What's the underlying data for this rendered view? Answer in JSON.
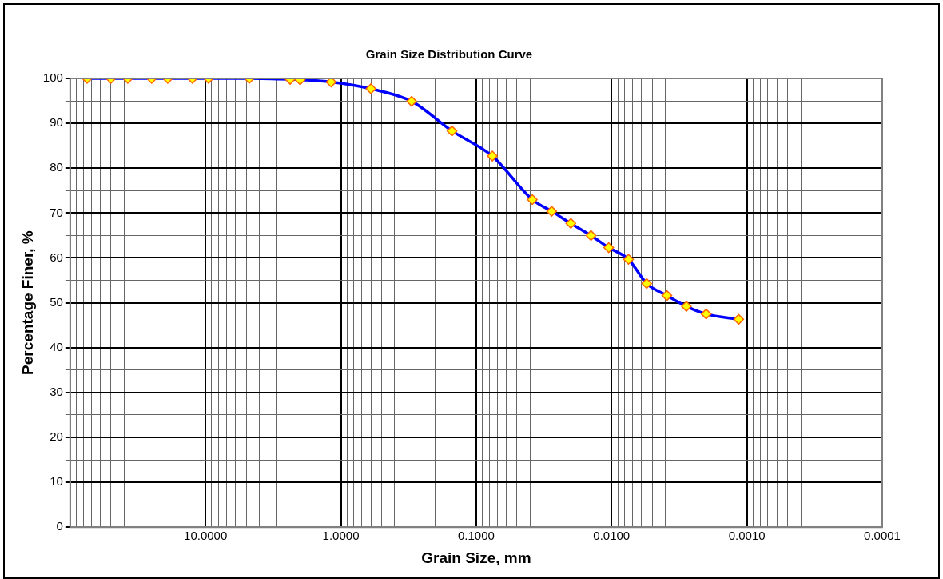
{
  "chart_data": {
    "type": "line",
    "title": "Grain Size Distribution Curve",
    "xlabel": "Grain Size, mm",
    "ylabel": "Percentage Finer, %",
    "x": [
      75,
      50,
      37.5,
      25,
      19,
      12.5,
      9.5,
      4.75,
      2.37,
      2,
      1.18,
      0.6,
      0.3,
      0.151,
      0.076,
      0.0385,
      0.0277,
      0.02,
      0.0142,
      0.0105,
      0.0075,
      0.0055,
      0.0039,
      0.0028,
      0.002,
      0.00115
    ],
    "series": [
      {
        "color": "#0000ff",
        "values": [
          100,
          100,
          100,
          100,
          100,
          100,
          100,
          100,
          99.8,
          99.7,
          99.2,
          97.7,
          94.9,
          88.3,
          82.7,
          73.0,
          70.4,
          67.7,
          65.0,
          62.3,
          59.7,
          54.3,
          51.6,
          49.2,
          47.5,
          46.3
        ]
      }
    ],
    "log": "x",
    "xlim": [
      100,
      0.0001
    ],
    "ylim": [
      0,
      100
    ],
    "xticks": [
      {
        "value": 100,
        "label": null
      },
      {
        "value": 90,
        "label": null
      },
      {
        "value": 80,
        "label": null
      },
      {
        "value": 70,
        "label": null
      },
      {
        "value": 60,
        "label": null
      },
      {
        "value": 50,
        "label": null
      },
      {
        "value": 40,
        "label": null
      },
      {
        "value": 30,
        "label": null
      },
      {
        "value": 20,
        "label": null
      },
      {
        "value": 10,
        "label": "10.0000"
      },
      {
        "value": 9,
        "label": null
      },
      {
        "value": 8,
        "label": null
      },
      {
        "value": 7,
        "label": null
      },
      {
        "value": 6,
        "label": null
      },
      {
        "value": 5,
        "label": null
      },
      {
        "value": 4,
        "label": null
      },
      {
        "value": 3,
        "label": null
      },
      {
        "value": 2,
        "label": null
      },
      {
        "value": 1,
        "label": "1.0000"
      },
      {
        "value": 0.9,
        "label": null
      },
      {
        "value": 0.8,
        "label": null
      },
      {
        "value": 0.7,
        "label": null
      },
      {
        "value": 0.6,
        "label": null
      },
      {
        "value": 0.5,
        "label": null
      },
      {
        "value": 0.4,
        "label": null
      },
      {
        "value": 0.3,
        "label": null
      },
      {
        "value": 0.2,
        "label": null
      },
      {
        "value": 0.1,
        "label": "0.1000"
      },
      {
        "value": 0.09,
        "label": null
      },
      {
        "value": 0.08,
        "label": null
      },
      {
        "value": 0.07,
        "label": null
      },
      {
        "value": 0.06,
        "label": null
      },
      {
        "value": 0.05,
        "label": null
      },
      {
        "value": 0.04,
        "label": null
      },
      {
        "value": 0.03,
        "label": null
      },
      {
        "value": 0.02,
        "label": null
      },
      {
        "value": 0.01,
        "label": "0.0100"
      },
      {
        "value": 0.009,
        "label": null
      },
      {
        "value": 0.008,
        "label": null
      },
      {
        "value": 0.007,
        "label": null
      },
      {
        "value": 0.006,
        "label": null
      },
      {
        "value": 0.005,
        "label": null
      },
      {
        "value": 0.004,
        "label": null
      },
      {
        "value": 0.003,
        "label": null
      },
      {
        "value": 0.002,
        "label": null
      },
      {
        "value": 0.001,
        "label": "0.0010"
      },
      {
        "value": 0.0009,
        "label": null
      },
      {
        "value": 0.0008,
        "label": null
      },
      {
        "value": 0.0007,
        "label": null
      },
      {
        "value": 0.0006,
        "label": null
      },
      {
        "value": 0.0005,
        "label": null
      },
      {
        "value": 0.0004,
        "label": null
      },
      {
        "value": 0.0003,
        "label": null
      },
      {
        "value": 0.0002,
        "label": null
      },
      {
        "value": 0.0001,
        "label": "0.0001"
      }
    ],
    "yticks": [
      0,
      {
        "value": 5,
        "label": null
      },
      10,
      {
        "value": 15,
        "label": null
      },
      20,
      {
        "value": 25,
        "label": null
      },
      30,
      {
        "value": 35,
        "label": null
      },
      40,
      {
        "value": 45,
        "label": null
      },
      50,
      {
        "value": 55,
        "label": null
      },
      60,
      {
        "value": 65,
        "label": null
      },
      70,
      {
        "value": 75,
        "label": null
      },
      80,
      {
        "value": 85,
        "label": null
      },
      90,
      {
        "value": 95,
        "label": null
      },
      100
    ],
    "grid": true,
    "legend": false,
    "marker": "diamond",
    "line_style": "solid"
  }
}
